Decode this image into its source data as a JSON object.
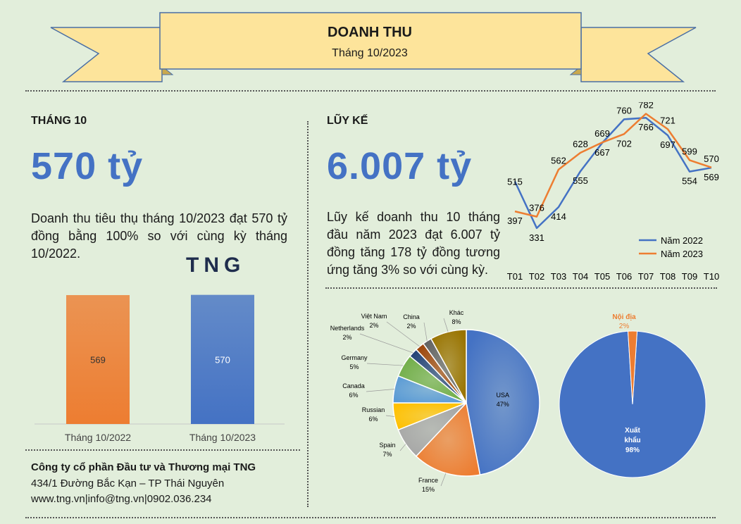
{
  "banner": {
    "title": "DOANH THU",
    "subtitle": "Tháng 10/2023"
  },
  "month_section": {
    "heading": "THÁNG 10",
    "big_value": "570 tỷ",
    "description": "Doanh thu tiêu thụ tháng 10/2023 đạt 570 tỷ đồng bằng 100% so với cùng kỳ tháng 10/2022.",
    "logo_text": "TNG"
  },
  "cumulative_section": {
    "heading": "LŨY KẾ",
    "big_value": "6.007 tỷ",
    "description": "Lũy kế doanh thu 10 tháng đầu năm 2023 đạt 6.007 tỷ đồng tăng 178 tỷ đồng tương ứng tăng 3% so với cùng kỳ."
  },
  "footer": {
    "company": "Công ty cổ phần Đầu tư và Thương mại TNG",
    "address": "434/1 Đường Bắc Kạn – TP Thái Nguyên",
    "contact": "www.tng.vn|info@tng.vn|0902.036.234"
  },
  "colors": {
    "background": "#e2eedb",
    "orange": "#ed7d31",
    "blue": "#4472c4",
    "banner_fill": "#fde49b",
    "banner_stroke": "#4a6fa5"
  },
  "chart_data": [
    {
      "type": "bar",
      "categories": [
        "Tháng 10/2022",
        "Tháng 10/2023"
      ],
      "values": [
        569,
        570
      ],
      "colors": [
        "#ed7d31",
        "#4472c4"
      ],
      "data_labels": [
        "569",
        "570"
      ],
      "ylim": [
        0,
        600
      ]
    },
    {
      "type": "line",
      "x": [
        "T01",
        "T02",
        "T03",
        "T04",
        "T05",
        "T06",
        "T07",
        "T08",
        "T09",
        "T10"
      ],
      "series": [
        {
          "name": "Năm 2022",
          "color": "#4472c4",
          "values": [
            515,
            331,
            414,
            555,
            667,
            760,
            766,
            697,
            554,
            569
          ]
        },
        {
          "name": "Năm 2023",
          "color": "#ed7d31",
          "values": [
            397,
            376,
            562,
            628,
            669,
            702,
            782,
            721,
            599,
            570
          ]
        }
      ],
      "legend": "bottom-right",
      "ylim": [
        300,
        800
      ]
    },
    {
      "type": "pie",
      "labels": [
        "USA",
        "France",
        "Spain",
        "Russian",
        "Canada",
        "Germany",
        "Netherlands",
        "Việt Nam",
        "China",
        "Khác"
      ],
      "values": [
        47,
        15,
        7,
        6,
        6,
        5,
        2,
        2,
        2,
        8
      ],
      "percent_labels": [
        "47%",
        "15%",
        "7%",
        "6%",
        "6%",
        "5%",
        "2%",
        "2%",
        "2%",
        "8%"
      ],
      "colors": [
        "#4472c4",
        "#ed7d31",
        "#a5a5a5",
        "#ffc000",
        "#5b9bd5",
        "#70ad47",
        "#264478",
        "#9e480e",
        "#636363",
        "#997300"
      ]
    },
    {
      "type": "pie",
      "labels": [
        "Xuất khẩu",
        "Nội địa"
      ],
      "values": [
        98,
        2
      ],
      "percent_labels": [
        "98%",
        "2%"
      ],
      "colors": [
        "#4472c4",
        "#ed7d31"
      ]
    }
  ]
}
